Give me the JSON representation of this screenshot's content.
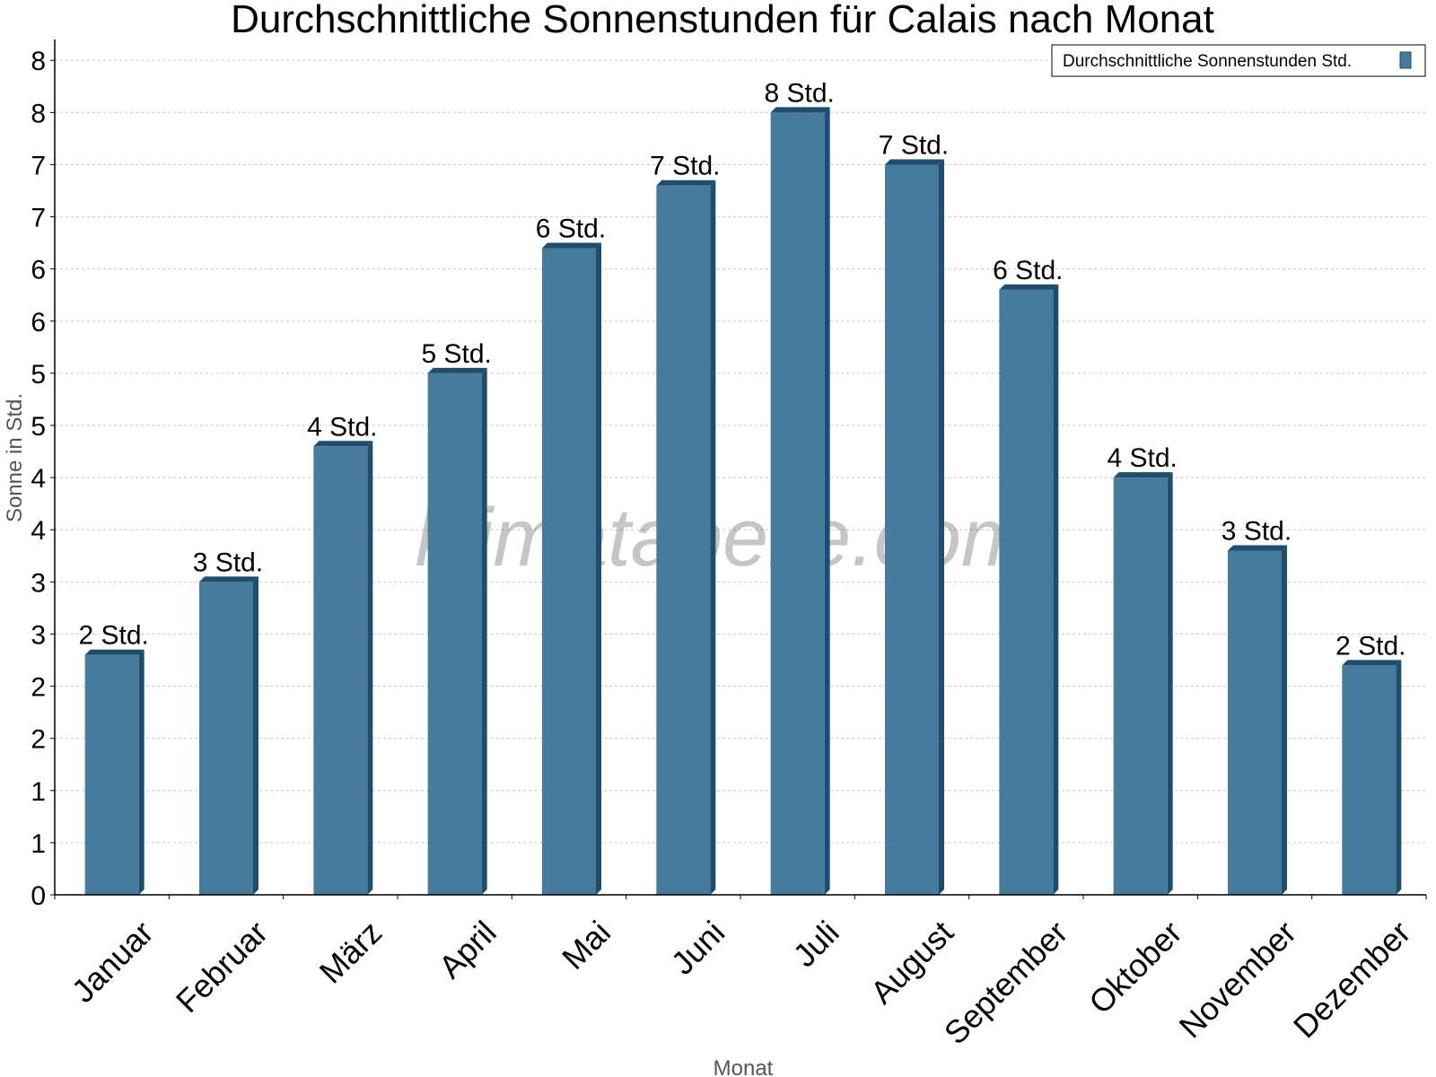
{
  "chart_data": {
    "type": "bar",
    "title": "Durchschnittliche Sonnenstunden für Calais nach Monat",
    "xlabel": "Monat",
    "ylabel": "Sonne in Std.",
    "categories": [
      "Januar",
      "Februar",
      "März",
      "April",
      "Mai",
      "Juni",
      "Juli",
      "August",
      "September",
      "Oktober",
      "November",
      "Dezember"
    ],
    "series": [
      {
        "name": "Durchschnittliche Sonnenstunden Std.",
        "values": [
          2.3,
          3.0,
          4.3,
          5.0,
          6.2,
          6.8,
          7.5,
          7.0,
          5.8,
          4.0,
          3.3,
          2.2
        ],
        "labels": [
          "2 Std.",
          "3 Std.",
          "4 Std.",
          "5 Std.",
          "6 Std.",
          "7 Std.",
          "8 Std.",
          "7 Std.",
          "6 Std.",
          "4 Std.",
          "3 Std.",
          "2 Std."
        ]
      }
    ],
    "ylim": [
      0,
      8.2
    ],
    "y_tick_values": [
      0,
      0.5,
      1,
      1.5,
      2,
      2.5,
      3,
      3.5,
      4,
      4.5,
      5,
      5.5,
      6,
      6.5,
      7,
      7.5,
      8
    ],
    "y_tick_labels": [
      "0",
      "1",
      "1",
      "2",
      "2",
      "3",
      "3",
      "4",
      "4",
      "5",
      "5",
      "6",
      "6",
      "7",
      "7",
      "8",
      "8"
    ],
    "grid": true,
    "legend_position": "top-right",
    "bar_color": "#477b9c",
    "bar_side_color": "#1e4d6e",
    "grid_color": "#c8c8c8"
  },
  "watermark": "klimatabelle.com"
}
